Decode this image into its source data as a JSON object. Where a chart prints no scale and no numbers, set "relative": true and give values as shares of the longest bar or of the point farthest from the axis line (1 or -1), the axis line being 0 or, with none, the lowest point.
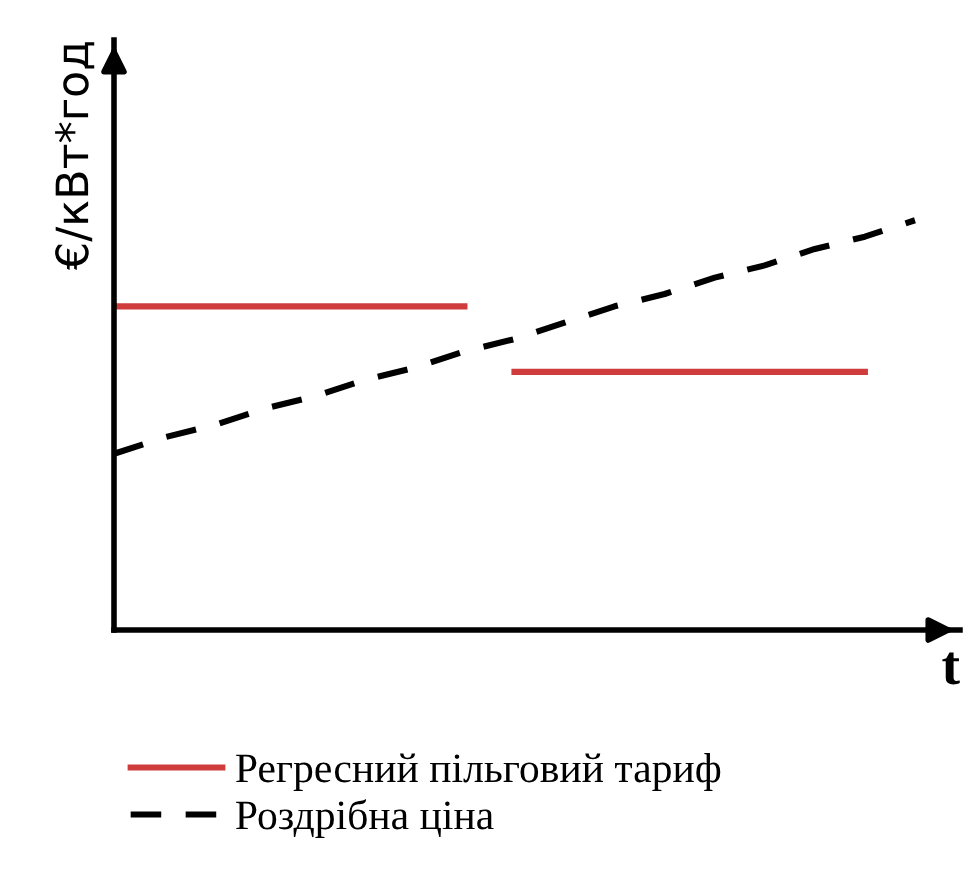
{
  "chart_data": {
    "type": "line",
    "relative": true,
    "xlabel": "t",
    "ylabel": "€/кВт*год",
    "categories": [
      null,
      null,
      null,
      null,
      null,
      null,
      null,
      null,
      null,
      null,
      null,
      null,
      null,
      null,
      null,
      null,
      null
    ],
    "series": [
      {
        "name": "Регресний пільговий тариф",
        "color": "#d03c3c",
        "line_style": "solid",
        "values": [
          0.79,
          0.79,
          0.79,
          0.79,
          0.79,
          0.79,
          0.79,
          0.79,
          null,
          null,
          null,
          null,
          null,
          null,
          null,
          null,
          null
        ]
      },
      {
        "color": "#d03c3c",
        "line_style": "solid",
        "values": [
          null,
          null,
          null,
          null,
          null,
          null,
          null,
          null,
          0.63,
          0.63,
          0.63,
          0.63,
          0.63,
          0.63,
          0.63,
          0.63,
          null
        ]
      },
      {
        "name": "Роздрібна ціна",
        "color": "#000000",
        "line_style": "dashed",
        "values": [
          0.43,
          0.47,
          0.5,
          0.54,
          0.57,
          0.61,
          0.64,
          0.68,
          0.71,
          0.75,
          0.79,
          0.82,
          0.86,
          0.89,
          0.93,
          0.96,
          1.0
        ]
      }
    ],
    "legend": "bottom",
    "grid": false,
    "marker": "none"
  }
}
